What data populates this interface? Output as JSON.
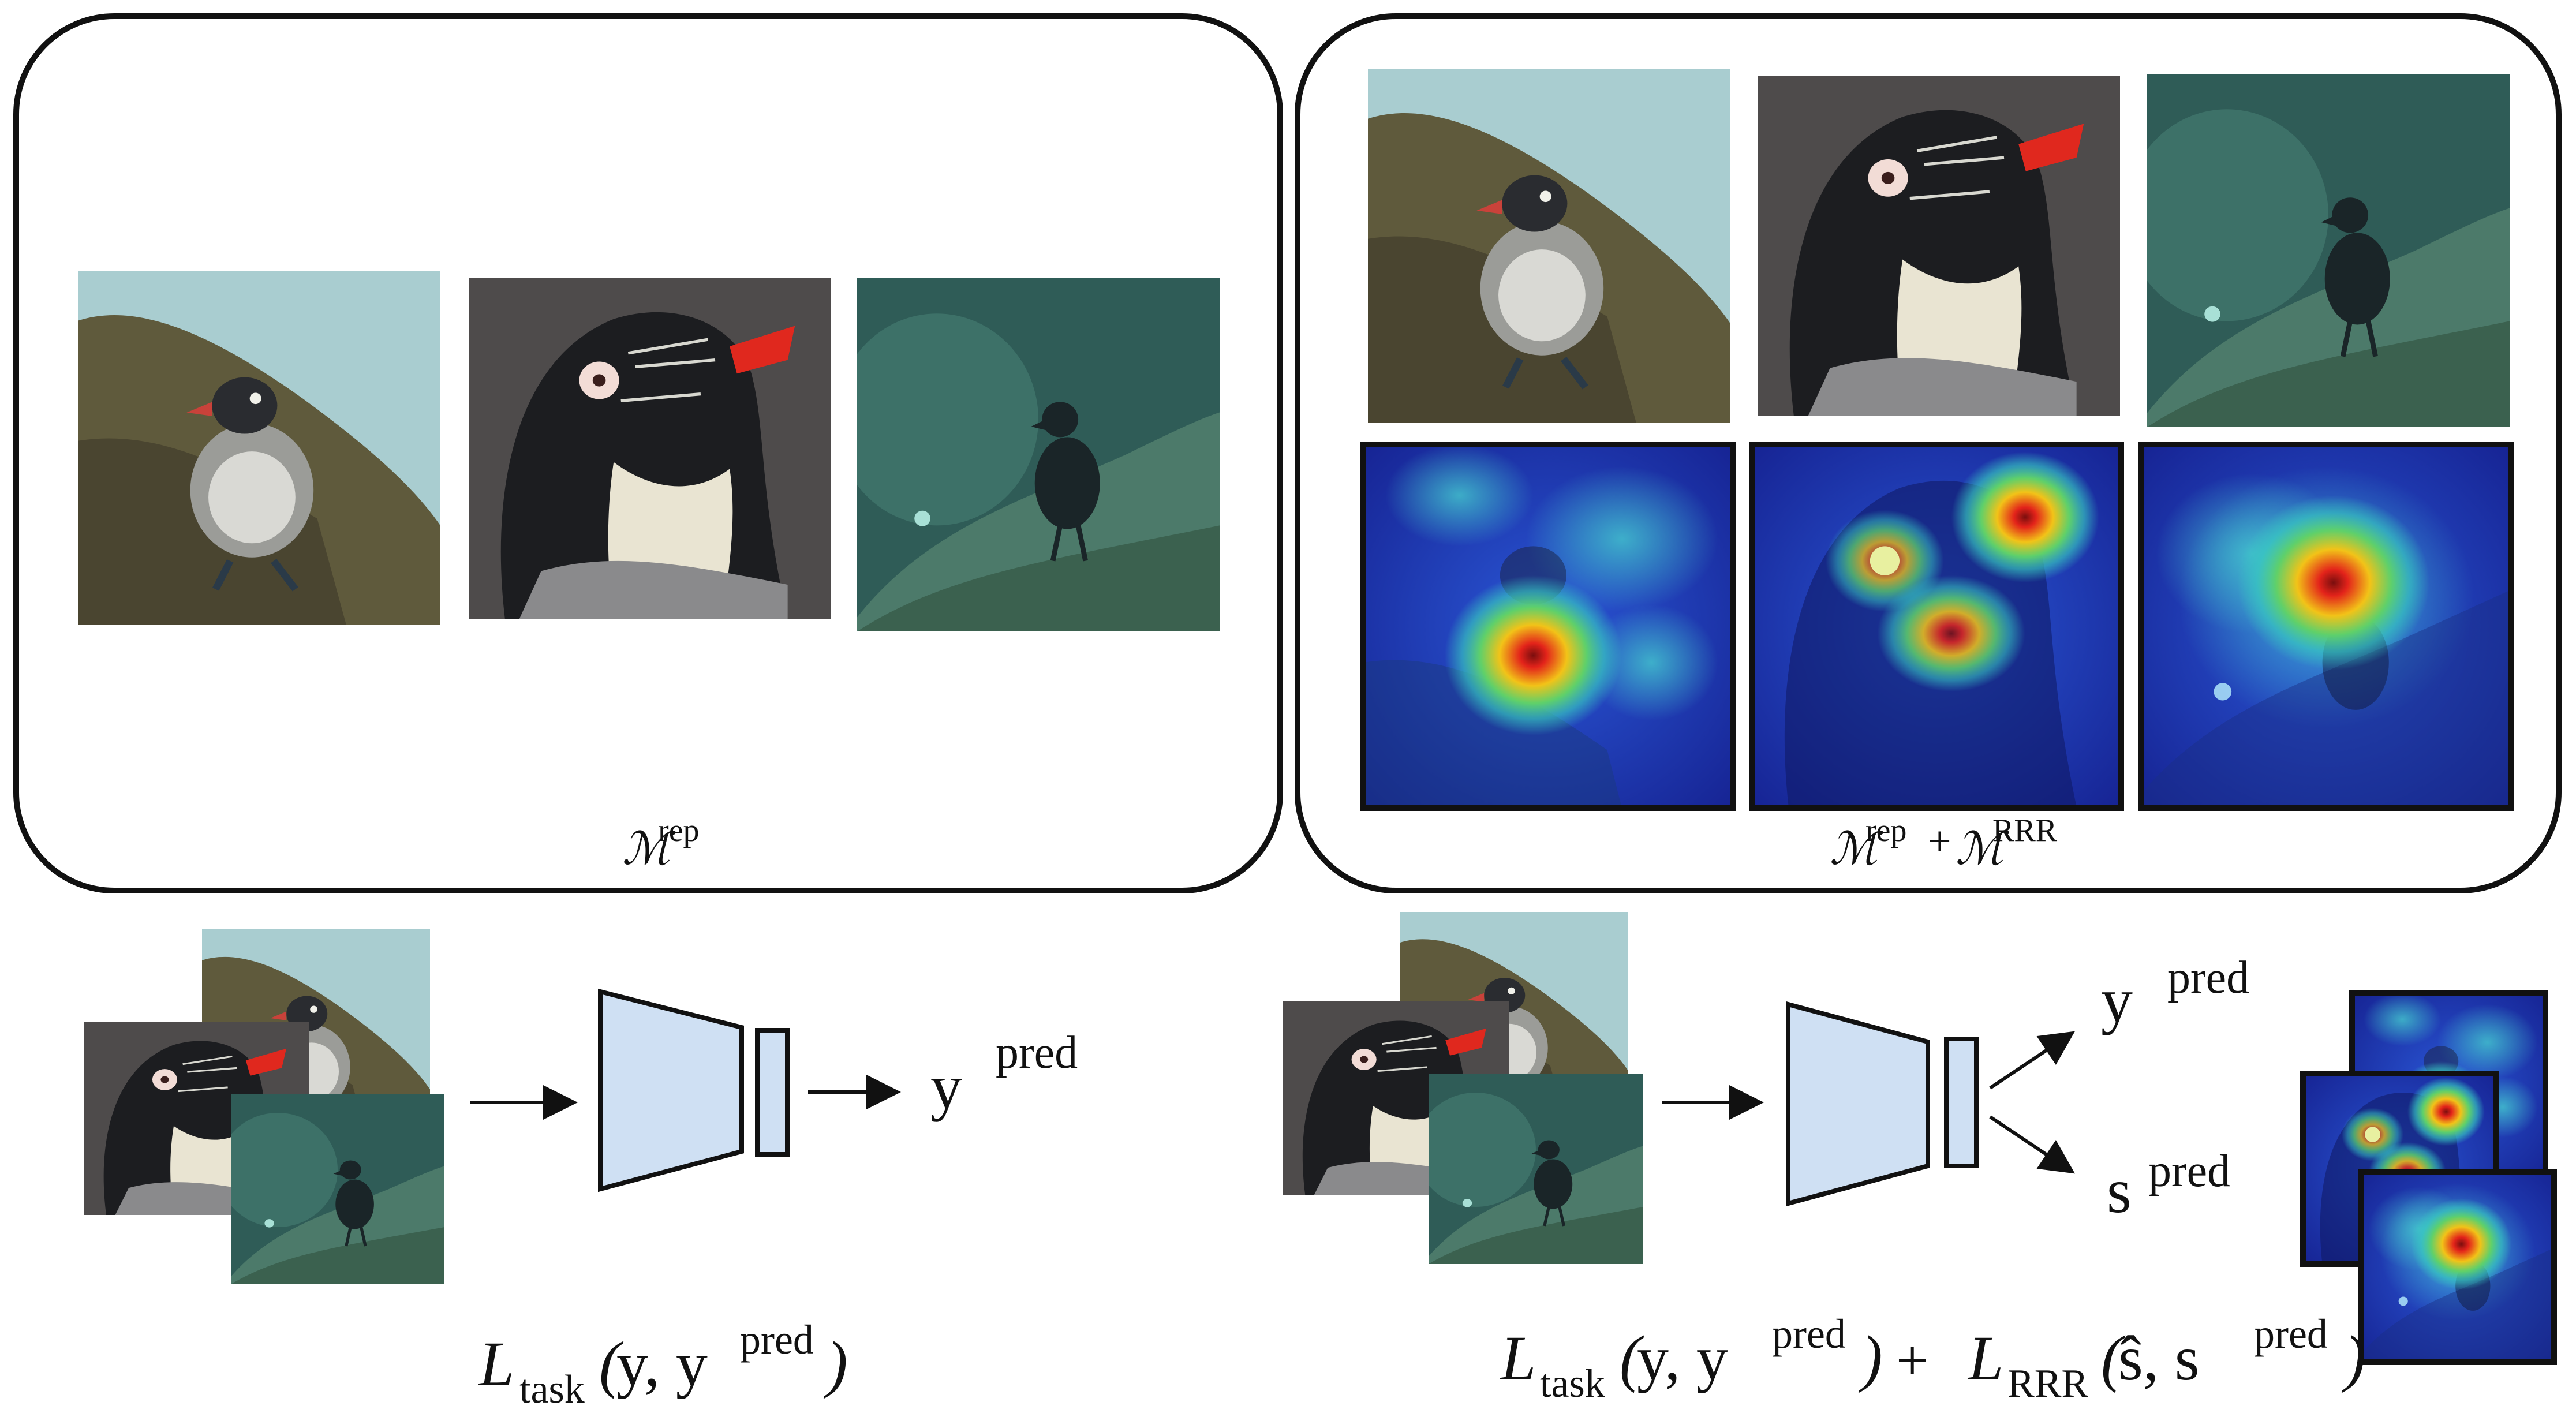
{
  "panels": {
    "left": {
      "label_symbol": "ℳ",
      "label_sup": "rep"
    },
    "right": {
      "label_symbol_a": "ℳ",
      "label_sup_a": "rep",
      "plus": "+",
      "label_symbol_b": "ℳ",
      "label_sup_b": "RRR"
    }
  },
  "pipeline_left": {
    "output": {
      "base": "y",
      "sup": "pred"
    },
    "loss": {
      "L": "L",
      "sub": "task",
      "open": "(",
      "args": " y, y",
      "sup": "pred",
      "close": ")"
    }
  },
  "pipeline_right": {
    "output_y": {
      "base": "y",
      "sup": "pred"
    },
    "output_s": {
      "base": "s",
      "sup": "pred"
    },
    "loss": {
      "L1": "L",
      "sub1": "task",
      "open1": "(",
      "args1": " y, y",
      "sup1": "pred",
      "close1": ")",
      "plus": "+",
      "L2": "L",
      "sub2": "RRR",
      "open2": "(",
      "args2": " ŝ, s",
      "sup2": "pred",
      "close2": ")"
    }
  },
  "colors": {
    "model_fill": "#cfe0f3",
    "outline": "#111111",
    "heat_low": "#1c2aa8",
    "heat_mid": "#37c8c0",
    "heat_high": "#e3231a"
  },
  "icons": [
    "bird-photo-rock",
    "bird-photo-head",
    "bird-photo-teal",
    "saliency-heatmap"
  ]
}
